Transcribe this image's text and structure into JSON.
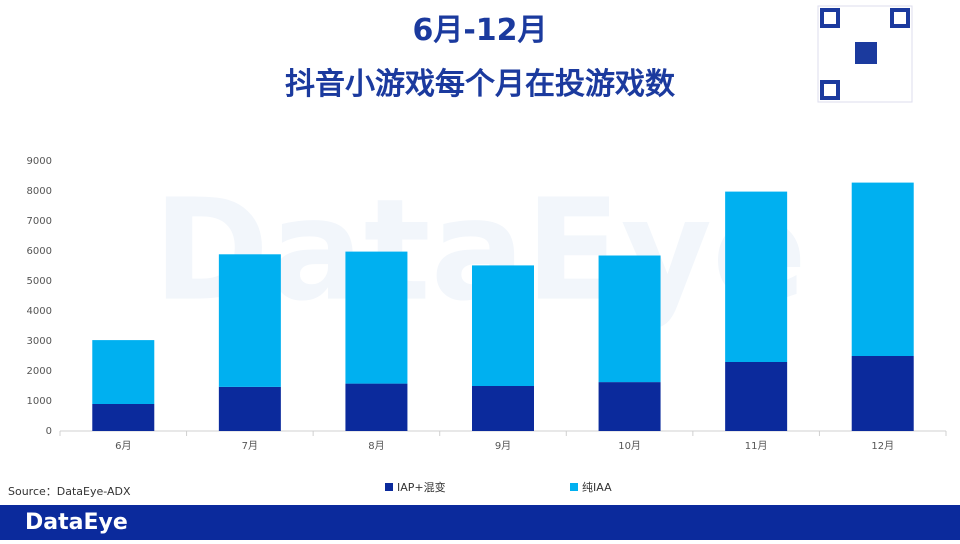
{
  "chart_data": {
    "type": "stacked-bar",
    "title_lines": [
      "6月-12月",
      "抖音小游戏每个月在投游戏数"
    ],
    "categories": [
      "6月",
      "7月",
      "8月",
      "9月",
      "10月",
      "11月",
      "12月"
    ],
    "series": [
      {
        "name": "IAP+混变",
        "color": "#0b2a9c",
        "values": [
          900,
          1470,
          1580,
          1500,
          1630,
          2300,
          2500
        ]
      },
      {
        "name": "纯IAA",
        "color": "#00b0f0",
        "values": [
          2130,
          4420,
          4400,
          4020,
          4220,
          5680,
          5780
        ]
      }
    ],
    "ylim": [
      0,
      9000
    ],
    "yticks": [
      0,
      1000,
      2000,
      3000,
      4000,
      5000,
      6000,
      7000,
      8000,
      9000
    ],
    "source": "Source：DataEye-ADX",
    "watermark": "DataEye",
    "brand": "DataEye"
  }
}
